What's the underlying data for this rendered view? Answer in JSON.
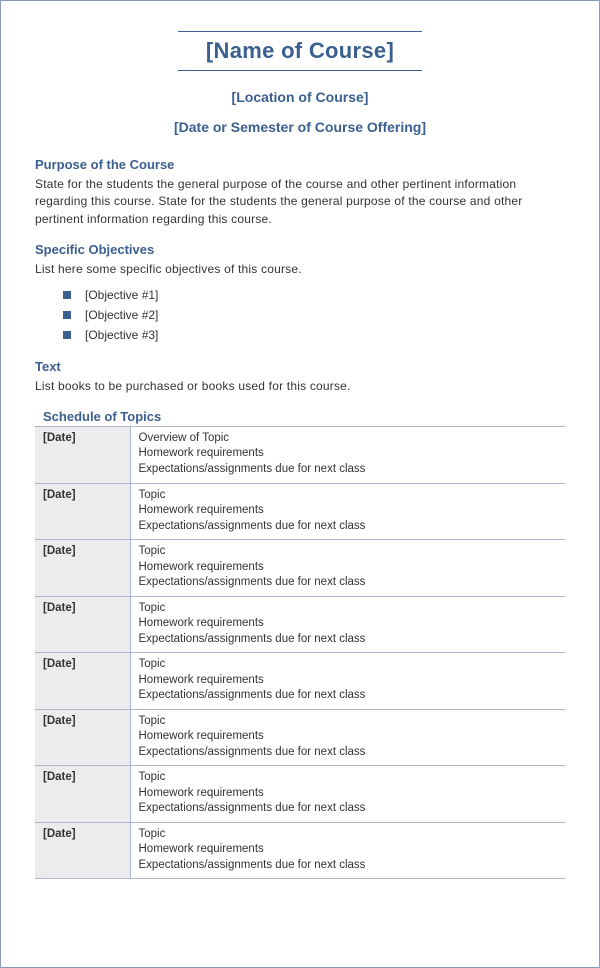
{
  "colors": {
    "accent": "#3b5f8f",
    "text": "#333333",
    "table_border": "#a9b7cf",
    "date_bg": "#ececec",
    "page_border": "#8899bb"
  },
  "header": {
    "course_name": "[Name of Course]",
    "location": "[Location of Course]",
    "date_semester": "[Date or Semester of Course Offering]"
  },
  "purpose": {
    "heading": "Purpose of the Course",
    "body": "State for the students the general purpose of the course and other pertinent information regarding this course. State for the students the general purpose of the course and other pertinent information regarding this course."
  },
  "objectives": {
    "heading": "Specific Objectives",
    "intro": "List here some specific objectives of this course.",
    "items": [
      "[Objective #1]",
      "[Objective #2]",
      "[Objective #3]"
    ]
  },
  "text_section": {
    "heading": "Text",
    "body": "List books to be purchased or books used for this course."
  },
  "schedule": {
    "heading": "Schedule of Topics",
    "rows": [
      {
        "date": "[Date]",
        "lines": [
          "Overview of Topic",
          "Homework requirements",
          "Expectations/assignments due for next class"
        ]
      },
      {
        "date": "[Date]",
        "lines": [
          "Topic",
          "Homework requirements",
          "Expectations/assignments due for next class"
        ]
      },
      {
        "date": "[Date]",
        "lines": [
          "Topic",
          "Homework requirements",
          "Expectations/assignments due for next class"
        ]
      },
      {
        "date": "[Date]",
        "lines": [
          "Topic",
          "Homework requirements",
          "Expectations/assignments due for next class"
        ]
      },
      {
        "date": "[Date]",
        "lines": [
          "Topic",
          "Homework requirements",
          "Expectations/assignments due for next class"
        ]
      },
      {
        "date": "[Date]",
        "lines": [
          "Topic",
          "Homework requirements",
          "Expectations/assignments due for next class"
        ]
      },
      {
        "date": "[Date]",
        "lines": [
          "Topic",
          "Homework requirements",
          "Expectations/assignments due for next class"
        ]
      },
      {
        "date": "[Date]",
        "lines": [
          "Topic",
          "Homework requirements",
          "Expectations/assignments due for next class"
        ]
      }
    ]
  }
}
